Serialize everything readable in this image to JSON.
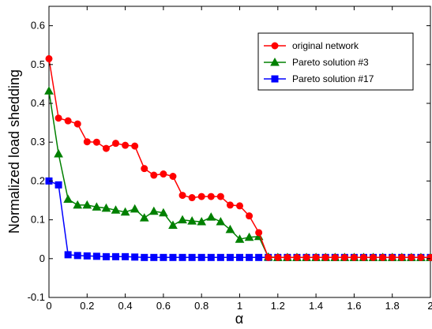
{
  "chart_data": {
    "type": "line",
    "xlabel": "α",
    "ylabel": "Normalized load shedding",
    "xlim": [
      0,
      2
    ],
    "ylim": [
      -0.1,
      0.65
    ],
    "xticks": [
      0,
      0.2,
      0.4,
      0.6,
      0.8,
      1,
      1.2,
      1.4,
      1.6,
      1.8,
      2
    ],
    "xtick_labels": [
      "0",
      "0.2",
      "0.4",
      "0.6",
      "0.8",
      "1",
      "1.2",
      "1.4",
      "1.6",
      "1.8",
      "2"
    ],
    "yticks": [
      -0.1,
      0,
      0.1,
      0.2,
      0.3,
      0.4,
      0.5,
      0.6
    ],
    "ytick_labels": [
      "-0.1",
      "0",
      "0.1",
      "0.2",
      "0.3",
      "0.4",
      "0.5",
      "0.6"
    ],
    "grid": false,
    "legend_position": "top-right",
    "x": [
      0,
      0.05,
      0.1,
      0.15,
      0.2,
      0.25,
      0.3,
      0.35,
      0.4,
      0.45,
      0.5,
      0.55,
      0.6,
      0.65,
      0.7,
      0.75,
      0.8,
      0.85,
      0.9,
      0.95,
      1.0,
      1.05,
      1.1,
      1.15,
      1.2,
      1.25,
      1.3,
      1.35,
      1.4,
      1.45,
      1.5,
      1.55,
      1.6,
      1.65,
      1.7,
      1.75,
      1.8,
      1.85,
      1.9,
      1.95,
      2.0
    ],
    "series": [
      {
        "name": "original network",
        "color": "#ff0000",
        "marker": "circle",
        "values": [
          0.515,
          0.362,
          0.355,
          0.347,
          0.301,
          0.3,
          0.284,
          0.297,
          0.292,
          0.29,
          0.232,
          0.215,
          0.218,
          0.212,
          0.163,
          0.157,
          0.16,
          0.16,
          0.16,
          0.138,
          0.136,
          0.11,
          0.067,
          0.003,
          0.003,
          0.003,
          0.003,
          0.003,
          0.003,
          0.003,
          0.003,
          0.003,
          0.003,
          0.003,
          0.003,
          0.003,
          0.003,
          0.003,
          0.003,
          0.003,
          0.003
        ]
      },
      {
        "name": "Pareto solution #3",
        "color": "#008000",
        "marker": "triangle",
        "values": [
          0.432,
          0.27,
          0.153,
          0.138,
          0.138,
          0.133,
          0.13,
          0.125,
          0.12,
          0.128,
          0.105,
          0.122,
          0.118,
          0.086,
          0.1,
          0.097,
          0.095,
          0.107,
          0.095,
          0.075,
          0.05,
          0.055,
          0.057,
          0.004,
          0.003,
          0.003,
          0.003,
          0.003,
          0.003,
          0.003,
          0.003,
          0.003,
          0.003,
          0.003,
          0.003,
          0.003,
          0.003,
          0.003,
          0.003,
          0.003,
          0.003
        ]
      },
      {
        "name": "Pareto solution #17",
        "color": "#0000ff",
        "marker": "square",
        "values": [
          0.2,
          0.19,
          0.01,
          0.008,
          0.007,
          0.006,
          0.005,
          0.005,
          0.005,
          0.004,
          0.003,
          0.003,
          0.003,
          0.003,
          0.003,
          0.003,
          0.003,
          0.003,
          0.003,
          0.003,
          0.003,
          0.003,
          0.003,
          0.003,
          0.003,
          0.003,
          0.003,
          0.003,
          0.003,
          0.003,
          0.003,
          0.003,
          0.003,
          0.003,
          0.003,
          0.003,
          0.003,
          0.003,
          0.003,
          0.003,
          0.003
        ]
      }
    ]
  }
}
